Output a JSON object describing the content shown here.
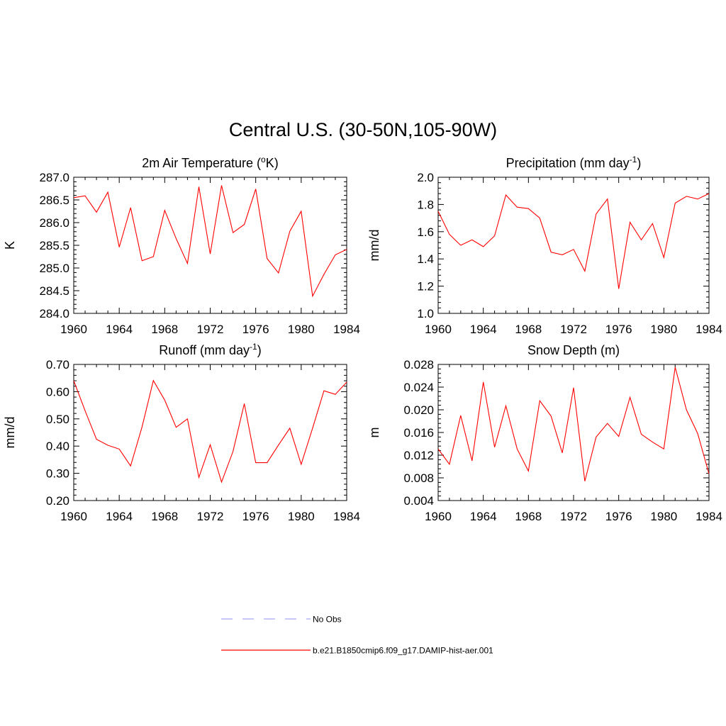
{
  "title": "Central U.S. (30-50N,105-90W)",
  "series_name": "b.e21.B1850cmip6.f09_g17.DAMIP-hist-aer.001",
  "colors": {
    "series": "#ff0000",
    "obs": "#a8a8ff",
    "axis": "#000000"
  },
  "legend": {
    "entries": [
      {
        "label": "No Obs",
        "style": "dashed",
        "color": "#a8a8ff"
      },
      {
        "label": "b.e21.B1850cmip6.f09_g17.DAMIP-hist-aer.001",
        "style": "solid",
        "color": "#ff0000"
      }
    ]
  },
  "chart_data": [
    {
      "type": "line",
      "title": "2m Air Temperature (",
      "title_sup": "o",
      "title_after": "K)",
      "ylabel": "K",
      "xlim": [
        1960,
        1984
      ],
      "ylim": [
        284.0,
        287.0
      ],
      "xticks": [
        1960,
        1964,
        1968,
        1972,
        1976,
        1980,
        1984
      ],
      "yticks": [
        "284.0",
        "284.5",
        "285.0",
        "285.5",
        "286.0",
        "286.5",
        "287.0"
      ],
      "ytick_values": [
        284.0,
        284.5,
        285.0,
        285.5,
        286.0,
        286.5,
        287.0
      ],
      "x": [
        1960,
        1961,
        1962,
        1963,
        1964,
        1965,
        1966,
        1967,
        1968,
        1969,
        1970,
        1971,
        1972,
        1973,
        1974,
        1975,
        1976,
        1977,
        1978,
        1979,
        1980,
        1981,
        1982,
        1983,
        1984
      ],
      "series": [
        {
          "name": "b.e21.B1850cmip6.f09_g17.DAMIP-hist-aer.001",
          "values": [
            286.55,
            286.59,
            286.23,
            286.67,
            285.46,
            286.33,
            285.16,
            285.25,
            286.27,
            285.65,
            285.1,
            286.79,
            285.31,
            286.82,
            285.78,
            285.96,
            286.74,
            285.21,
            284.89,
            285.81,
            286.25,
            284.38,
            284.86,
            285.29,
            285.41
          ]
        }
      ]
    },
    {
      "type": "line",
      "title": "Precipitation (mm day",
      "title_sup": "-1",
      "title_after": ")",
      "ylabel": "mm/d",
      "xlim": [
        1960,
        1984
      ],
      "ylim": [
        1.0,
        2.0
      ],
      "xticks": [
        1960,
        1964,
        1968,
        1972,
        1976,
        1980,
        1984
      ],
      "yticks": [
        "1.0",
        "1.2",
        "1.4",
        "1.6",
        "1.8",
        "2.0"
      ],
      "ytick_values": [
        1.0,
        1.2,
        1.4,
        1.6,
        1.8,
        2.0
      ],
      "x": [
        1960,
        1961,
        1962,
        1963,
        1964,
        1965,
        1966,
        1967,
        1968,
        1969,
        1970,
        1971,
        1972,
        1973,
        1974,
        1975,
        1976,
        1977,
        1978,
        1979,
        1980,
        1981,
        1982,
        1983,
        1984
      ],
      "series": [
        {
          "name": "b.e21.B1850cmip6.f09_g17.DAMIP-hist-aer.001",
          "values": [
            1.75,
            1.58,
            1.5,
            1.54,
            1.49,
            1.57,
            1.87,
            1.78,
            1.77,
            1.7,
            1.45,
            1.43,
            1.47,
            1.31,
            1.73,
            1.84,
            1.18,
            1.67,
            1.54,
            1.66,
            1.41,
            1.81,
            1.86,
            1.84,
            1.88
          ]
        }
      ]
    },
    {
      "type": "line",
      "title": "Runoff (mm day",
      "title_sup": "-1",
      "title_after": ")",
      "ylabel": "mm/d",
      "xlim": [
        1960,
        1984
      ],
      "ylim": [
        0.2,
        0.7
      ],
      "xticks": [
        1960,
        1964,
        1968,
        1972,
        1976,
        1980,
        1984
      ],
      "yticks": [
        "0.20",
        "0.30",
        "0.40",
        "0.50",
        "0.60",
        "0.70"
      ],
      "ytick_values": [
        0.2,
        0.3,
        0.4,
        0.5,
        0.6,
        0.7
      ],
      "x": [
        1960,
        1961,
        1962,
        1963,
        1964,
        1965,
        1966,
        1967,
        1968,
        1969,
        1970,
        1971,
        1972,
        1973,
        1974,
        1975,
        1976,
        1977,
        1978,
        1979,
        1980,
        1981,
        1982,
        1983,
        1984
      ],
      "series": [
        {
          "name": "b.e21.B1850cmip6.f09_g17.DAMIP-hist-aer.001",
          "values": [
            0.64,
            0.53,
            0.425,
            0.403,
            0.389,
            0.327,
            0.47,
            0.641,
            0.569,
            0.469,
            0.5,
            0.285,
            0.405,
            0.268,
            0.38,
            0.556,
            0.339,
            0.339,
            0.404,
            0.466,
            0.333,
            0.466,
            0.603,
            0.59,
            0.635
          ]
        }
      ]
    },
    {
      "type": "line",
      "title": "Snow Depth (m)",
      "title_sup": "",
      "title_after": "",
      "ylabel": "m",
      "xlim": [
        1960,
        1984
      ],
      "ylim": [
        0.004,
        0.028
      ],
      "xticks": [
        1960,
        1964,
        1968,
        1972,
        1976,
        1980,
        1984
      ],
      "yticks": [
        "0.004",
        "0.008",
        "0.012",
        "0.016",
        "0.020",
        "0.024",
        "0.028"
      ],
      "ytick_values": [
        0.004,
        0.008,
        0.012,
        0.016,
        0.02,
        0.024,
        0.028
      ],
      "x": [
        1960,
        1961,
        1962,
        1963,
        1964,
        1965,
        1966,
        1967,
        1968,
        1969,
        1970,
        1971,
        1972,
        1973,
        1974,
        1975,
        1976,
        1977,
        1978,
        1979,
        1980,
        1981,
        1982,
        1983,
        1984
      ],
      "series": [
        {
          "name": "b.e21.B1850cmip6.f09_g17.DAMIP-hist-aer.001",
          "values": [
            0.0131,
            0.0104,
            0.019,
            0.011,
            0.0249,
            0.0134,
            0.0207,
            0.0131,
            0.0092,
            0.0216,
            0.0189,
            0.0124,
            0.0239,
            0.0074,
            0.0152,
            0.0176,
            0.0153,
            0.0222,
            0.0157,
            0.0143,
            0.0131,
            0.0275,
            0.02,
            0.0158,
            0.0087
          ]
        }
      ]
    }
  ]
}
